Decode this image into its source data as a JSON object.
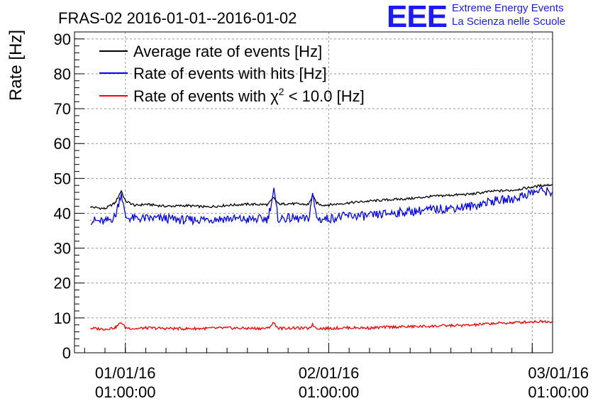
{
  "logo": {
    "mark": "EEE",
    "line1": "Extreme Energy Events",
    "line2": "La Scienza nelle Scuole",
    "color": "#1a1aff"
  },
  "chart_data": {
    "type": "line",
    "title": "FRAS-02 2016-01-01--2016-01-02",
    "xlabel": "",
    "ylabel": "Rate [Hz]",
    "ylim": [
      0,
      92
    ],
    "yticks": [
      0,
      10,
      20,
      30,
      40,
      50,
      60,
      70,
      80,
      90
    ],
    "xlim": [
      -0.25,
      2.1
    ],
    "xticks": [
      {
        "value": 0,
        "date": "01/01/16",
        "time": "01:00:00"
      },
      {
        "value": 1,
        "date": "02/01/16",
        "time": "01:00:00"
      },
      {
        "value": 2,
        "date": "03/01/16",
        "time": "01:00:00"
      }
    ],
    "grid": true,
    "legend_position": "top-left",
    "x": [
      -0.17,
      -0.1,
      -0.05,
      -0.02,
      0.0,
      0.05,
      0.1,
      0.2,
      0.3,
      0.4,
      0.5,
      0.6,
      0.7,
      0.73,
      0.75,
      0.77,
      0.8,
      0.9,
      0.92,
      0.94,
      0.96,
      1.0,
      1.1,
      1.2,
      1.3,
      1.4,
      1.5,
      1.6,
      1.7,
      1.8,
      1.9,
      2.0,
      2.05,
      2.1
    ],
    "series": [
      {
        "name": "Average rate of events [Hz]",
        "color": "#000000",
        "values": [
          41.8,
          41.3,
          43.0,
          46.5,
          43.5,
          42.2,
          42.6,
          42.0,
          42.2,
          41.8,
          42.3,
          42.6,
          42.5,
          44.5,
          42.8,
          42.6,
          42.8,
          42.5,
          45.0,
          43.0,
          42.4,
          42.4,
          43.0,
          43.5,
          43.9,
          44.2,
          44.8,
          45.2,
          45.5,
          46.3,
          46.6,
          47.5,
          48.0,
          48.2
        ]
      },
      {
        "name": "Rate of events with hits [Hz]",
        "color": "#0000ff",
        "values": [
          38.0,
          37.5,
          39.0,
          46.0,
          38.8,
          38.5,
          38.5,
          38.5,
          38.0,
          38.3,
          38.5,
          38.2,
          38.4,
          46.5,
          38.5,
          38.5,
          38.6,
          38.2,
          45.5,
          38.8,
          38.2,
          38.5,
          39.3,
          39.2,
          40.0,
          40.5,
          41.0,
          41.5,
          42.0,
          43.5,
          44.0,
          46.0,
          46.5,
          46.0
        ]
      },
      {
        "name": "Rate of events with χ² < 10.0 [Hz]",
        "color": "#ff0000",
        "values": [
          7.0,
          6.8,
          7.2,
          8.7,
          7.2,
          6.9,
          7.1,
          7.0,
          6.9,
          7.0,
          7.1,
          7.0,
          7.0,
          8.6,
          7.1,
          7.0,
          7.1,
          7.0,
          8.0,
          7.1,
          7.0,
          7.0,
          7.2,
          7.1,
          7.4,
          7.5,
          7.6,
          7.8,
          7.9,
          8.4,
          8.6,
          8.9,
          9.0,
          8.9
        ]
      }
    ],
    "legend": [
      {
        "text": "Average rate of events [Hz]",
        "color": "#000000"
      },
      {
        "text": "Rate of events with hits [Hz]",
        "color": "#0000ff"
      },
      {
        "text_pre": "Rate of events with ",
        "symbol": "χ",
        "sup": "2",
        "text_post": " < 10.0 [Hz]",
        "color": "#ff0000"
      }
    ]
  }
}
